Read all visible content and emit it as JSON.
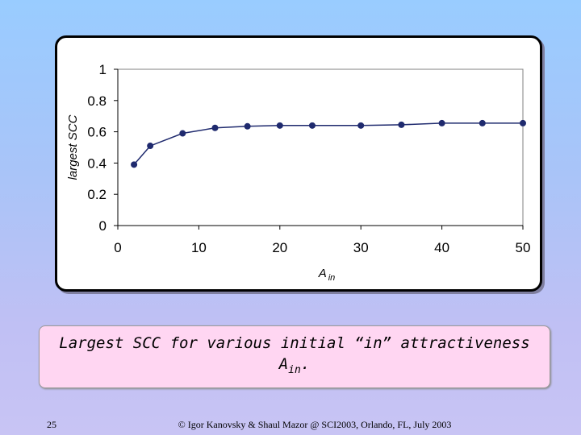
{
  "chart_data": {
    "type": "line",
    "xlabel": "A",
    "xlabel_sub": "in",
    "ylabel": "largest SCC",
    "xlim": [
      0,
      50
    ],
    "ylim": [
      0,
      1
    ],
    "x_ticks": [
      "0",
      "10",
      "20",
      "30",
      "40",
      "50"
    ],
    "y_ticks": [
      "0",
      "0.2",
      "0.4",
      "0.6",
      "0.8",
      "1"
    ],
    "x_tick_values": [
      0,
      10,
      20,
      30,
      40,
      50
    ],
    "y_tick_values": [
      0,
      0.2,
      0.4,
      0.6,
      0.8,
      1
    ],
    "series": [
      {
        "x": [
          2,
          4,
          8,
          12,
          16,
          20,
          24,
          30,
          35,
          40,
          45,
          50
        ],
        "y": [
          0.39,
          0.51,
          0.59,
          0.625,
          0.635,
          0.64,
          0.64,
          0.64,
          0.645,
          0.655,
          0.655,
          0.655
        ],
        "color": "#1F2A6E"
      }
    ]
  },
  "caption": {
    "line1": "Largest SCC for various initial “in” attractiveness",
    "line2_main": "A",
    "line2_sub": "in",
    "line2_end": "."
  },
  "slide_number": "25",
  "footer": "© Igor Kanovsky & Shaul Mazor @ SCI2003, Orlando, FL, July 2003"
}
